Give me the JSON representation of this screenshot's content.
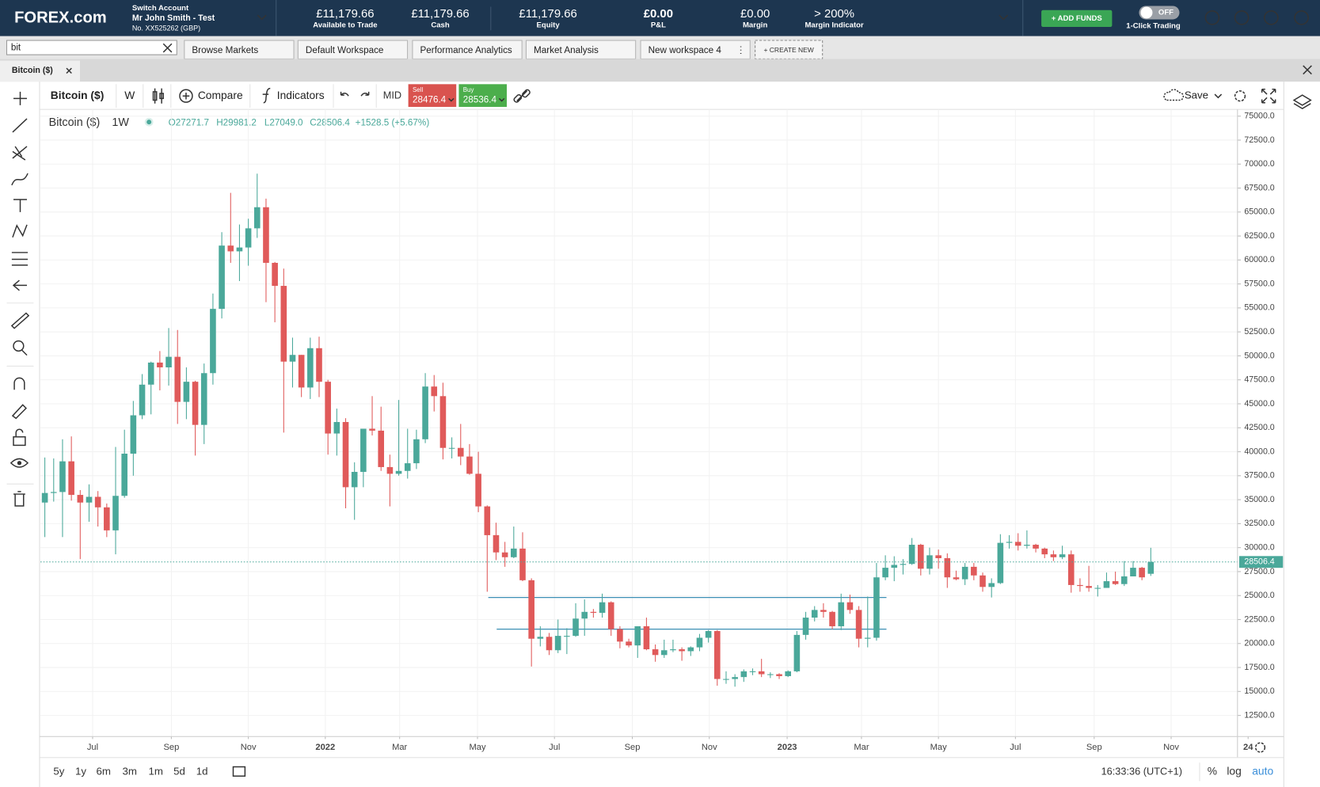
{
  "header": {
    "logo": "FOREX.com",
    "account_switch": "Switch Account",
    "account_name": "Mr John Smith - Test",
    "account_number": "No. XX525262 (GBP)",
    "metrics": [
      {
        "value": "£11,179.66",
        "label": "Available to Trade"
      },
      {
        "value": "£11,179.66",
        "label": "Cash"
      },
      {
        "value": "£11,179.66",
        "label": "Equity"
      },
      {
        "value": "£0.00",
        "label": "P&L"
      },
      {
        "value": "£0.00",
        "label": "Margin"
      },
      {
        "value": "> 200%",
        "label": "Margin Indicator"
      }
    ],
    "add_funds": "+ ADD FUNDS",
    "toggle_state": "OFF",
    "toggle_label": "1-Click Trading"
  },
  "workspace_bar": {
    "search": "bit",
    "tabs": [
      "Browse Markets",
      "Default Workspace",
      "Performance Analytics",
      "Market Analysis",
      "New workspace 4"
    ],
    "create_new": "+ CREATE NEW"
  },
  "document_tab": "Bitcoin ($)",
  "toolbar": {
    "instrument": "Bitcoin ($)",
    "interval": "W",
    "compare": "Compare",
    "indicators": "Indicators",
    "price_type": "MID",
    "sell_label": "Sell",
    "sell_price": "28476.4",
    "buy_label": "Buy",
    "buy_price": "28536.4",
    "save": "Save"
  },
  "legend": {
    "instrument": "Bitcoin ($)",
    "interval": "1W",
    "open": "O27271.7",
    "high": "H29981.2",
    "low": "L27049.0",
    "close": "C28506.4",
    "change": "+1528.5 (+5.67%)"
  },
  "chart_data": {
    "type": "candlestick",
    "up_color": "#4aa89a",
    "down_color": "#e05a5a",
    "line_color": "#3d8fb5",
    "ohlc": [
      [
        34700,
        39400,
        31100,
        35700
      ],
      [
        35700,
        39300,
        34800,
        35800
      ],
      [
        35800,
        41300,
        31100,
        39000
      ],
      [
        39000,
        41600,
        34900,
        35500
      ],
      [
        35500,
        36000,
        28800,
        34700
      ],
      [
        34700,
        36600,
        32700,
        35300
      ],
      [
        35300,
        35900,
        32200,
        34200
      ],
      [
        34200,
        34600,
        31100,
        31800
      ],
      [
        31800,
        40500,
        29300,
        35400
      ],
      [
        35400,
        42300,
        35200,
        39800
      ],
      [
        39800,
        45300,
        37500,
        43800
      ],
      [
        43800,
        48100,
        43400,
        47000
      ],
      [
        47000,
        49400,
        43900,
        49300
      ],
      [
        49300,
        50500,
        46400,
        48800
      ],
      [
        48800,
        52900,
        46900,
        49900
      ],
      [
        49900,
        52700,
        42900,
        45200
      ],
      [
        45200,
        48800,
        43400,
        47300
      ],
      [
        47300,
        47400,
        39600,
        42800
      ],
      [
        42800,
        49200,
        40800,
        48200
      ],
      [
        48200,
        56500,
        47000,
        54900
      ],
      [
        54900,
        62900,
        53900,
        61500
      ],
      [
        61500,
        67000,
        59700,
        60900
      ],
      [
        60900,
        63700,
        57800,
        61300
      ],
      [
        61300,
        64300,
        59400,
        63300
      ],
      [
        63300,
        69000,
        62300,
        65500
      ],
      [
        65500,
        66400,
        55600,
        59700
      ],
      [
        59700,
        59800,
        53500,
        57300
      ],
      [
        57300,
        59100,
        42000,
        49400
      ],
      [
        49400,
        51900,
        46700,
        50100
      ],
      [
        50100,
        50100,
        45700,
        46700
      ],
      [
        46700,
        51900,
        45500,
        50800
      ],
      [
        50800,
        52000,
        45700,
        47300
      ],
      [
        47300,
        47500,
        39700,
        41900
      ],
      [
        41900,
        44500,
        39600,
        43100
      ],
      [
        43100,
        43500,
        34100,
        36300
      ],
      [
        36300,
        38900,
        32900,
        37900
      ],
      [
        37900,
        42400,
        36300,
        42400
      ],
      [
        42400,
        45800,
        41700,
        42200
      ],
      [
        42200,
        44700,
        38000,
        38400
      ],
      [
        38400,
        39700,
        34300,
        37700
      ],
      [
        37700,
        45400,
        37500,
        38000
      ],
      [
        38000,
        42400,
        37200,
        38800
      ],
      [
        38800,
        42300,
        38200,
        41300
      ],
      [
        41300,
        48200,
        40900,
        46800
      ],
      [
        46800,
        48000,
        44200,
        45800
      ],
      [
        45800,
        47200,
        39200,
        40400
      ],
      [
        40400,
        41500,
        39300,
        40400
      ],
      [
        40400,
        42900,
        38600,
        39500
      ],
      [
        39500,
        40800,
        37600,
        37700
      ],
      [
        37700,
        40000,
        33700,
        34300
      ],
      [
        34300,
        34400,
        25400,
        31300
      ],
      [
        31300,
        32600,
        28700,
        29500
      ],
      [
        29500,
        30600,
        28000,
        29000
      ],
      [
        29000,
        32200,
        28900,
        29900
      ],
      [
        29900,
        31600,
        26500,
        26600
      ],
      [
        26600,
        26800,
        17600,
        20500
      ],
      [
        20500,
        21800,
        19700,
        20700
      ],
      [
        20700,
        21100,
        18800,
        19300
      ],
      [
        19300,
        22500,
        19000,
        20800
      ],
      [
        20800,
        21600,
        18900,
        20800
      ],
      [
        20800,
        24200,
        20700,
        22600
      ],
      [
        22600,
        24600,
        20800,
        23300
      ],
      [
        23300,
        23600,
        22700,
        23200
      ],
      [
        23200,
        25200,
        22700,
        24300
      ],
      [
        24300,
        24400,
        20800,
        21500
      ],
      [
        21500,
        21800,
        19500,
        20200
      ],
      [
        20200,
        20500,
        19600,
        19800
      ],
      [
        19800,
        21800,
        18500,
        21800
      ],
      [
        21800,
        22700,
        19300,
        19400
      ],
      [
        19400,
        19900,
        18100,
        18800
      ],
      [
        18800,
        20400,
        18500,
        19300
      ],
      [
        19300,
        20400,
        19100,
        19400
      ],
      [
        19400,
        19600,
        18200,
        19200
      ],
      [
        19200,
        19700,
        18700,
        19600
      ],
      [
        19600,
        21000,
        19200,
        20600
      ],
      [
        20600,
        21400,
        20100,
        21300
      ],
      [
        21300,
        21400,
        15600,
        16300
      ],
      [
        16300,
        17100,
        15800,
        16300
      ],
      [
        16300,
        16800,
        15500,
        16500
      ],
      [
        16500,
        17300,
        16000,
        17100
      ],
      [
        17100,
        17400,
        16700,
        17100
      ],
      [
        17100,
        18400,
        16500,
        16800
      ],
      [
        16800,
        17000,
        16400,
        16800
      ],
      [
        16800,
        16900,
        16300,
        16600
      ],
      [
        16600,
        17200,
        16500,
        17100
      ],
      [
        17100,
        21300,
        17000,
        20900
      ],
      [
        20900,
        23300,
        20400,
        22700
      ],
      [
        22700,
        23900,
        22300,
        23500
      ],
      [
        23500,
        24200,
        22700,
        23300
      ],
      [
        23300,
        23400,
        21500,
        21800
      ],
      [
        21800,
        25200,
        21400,
        24300
      ],
      [
        24300,
        25100,
        23100,
        23500
      ],
      [
        23500,
        23900,
        19600,
        20500
      ],
      [
        20500,
        24900,
        19600,
        20600
      ],
      [
        20600,
        28400,
        20300,
        26900
      ],
      [
        26900,
        29200,
        26600,
        27900
      ],
      [
        27900,
        29100,
        26500,
        28200
      ],
      [
        28200,
        28800,
        27200,
        28300
      ],
      [
        28300,
        31000,
        28200,
        30300
      ],
      [
        30300,
        30400,
        27100,
        27800
      ],
      [
        27800,
        30000,
        27200,
        29200
      ],
      [
        29200,
        29800,
        27800,
        28900
      ],
      [
        28900,
        29400,
        25800,
        26900
      ],
      [
        26900,
        27600,
        26600,
        26700
      ],
      [
        26700,
        28400,
        26100,
        28000
      ],
      [
        28000,
        28400,
        26600,
        27100
      ],
      [
        27100,
        27400,
        25400,
        25900
      ],
      [
        25900,
        26800,
        24800,
        26300
      ],
      [
        26300,
        31400,
        26200,
        30500
      ],
      [
        30500,
        31300,
        29900,
        30600
      ],
      [
        30600,
        31500,
        29700,
        30200
      ],
      [
        30200,
        31800,
        29900,
        30300
      ],
      [
        30300,
        30400,
        29500,
        29900
      ],
      [
        29900,
        30000,
        28900,
        29300
      ],
      [
        29300,
        29700,
        28600,
        29000
      ],
      [
        29000,
        30200,
        28800,
        29300
      ],
      [
        29300,
        29700,
        25300,
        26100
      ],
      [
        26100,
        26800,
        25400,
        26000
      ],
      [
        26000,
        28100,
        25400,
        25800
      ],
      [
        25800,
        26100,
        24900,
        25800
      ],
      [
        25800,
        27400,
        25800,
        26500
      ],
      [
        26500,
        27500,
        26100,
        26200
      ],
      [
        26200,
        28600,
        26000,
        27000
      ],
      [
        27000,
        28600,
        27000,
        27900
      ],
      [
        27900,
        28000,
        26600,
        26900
      ],
      [
        27271.7,
        29981.2,
        27049.0,
        28506.4
      ]
    ],
    "xlim": [
      -0.5,
      134.8
    ],
    "xticks": [
      {
        "value": 5.4,
        "label": "Jul"
      },
      {
        "value": 14.3,
        "label": "Sep"
      },
      {
        "value": 23,
        "label": "Nov"
      },
      {
        "value": 31.7,
        "label": "2022"
      },
      {
        "value": 40.1,
        "label": "Mar"
      },
      {
        "value": 48.9,
        "label": "May"
      },
      {
        "value": 57.6,
        "label": "Jul"
      },
      {
        "value": 66.4,
        "label": "Sep"
      },
      {
        "value": 75.1,
        "label": "Nov"
      },
      {
        "value": 83.9,
        "label": "2023"
      },
      {
        "value": 92.3,
        "label": "Mar"
      },
      {
        "value": 101,
        "label": "May"
      },
      {
        "value": 109.7,
        "label": "Jul"
      },
      {
        "value": 118.6,
        "label": "Sep"
      },
      {
        "value": 127.3,
        "label": "Nov"
      },
      {
        "value": 136,
        "label": "24"
      }
    ],
    "ylim": [
      10300,
      75700
    ],
    "yticks": [
      {
        "value": 75000,
        "label": "75000.0"
      },
      {
        "value": 72500,
        "label": "72500.0"
      },
      {
        "value": 70000,
        "label": "70000.0"
      },
      {
        "value": 67500,
        "label": "67500.0"
      },
      {
        "value": 65000,
        "label": "65000.0"
      },
      {
        "value": 62500,
        "label": "62500.0"
      },
      {
        "value": 60000,
        "label": "60000.0"
      },
      {
        "value": 57500,
        "label": "57500.0"
      },
      {
        "value": 55000,
        "label": "55000.0"
      },
      {
        "value": 52500,
        "label": "52500.0"
      },
      {
        "value": 50000,
        "label": "50000.0"
      },
      {
        "value": 47500,
        "label": "47500.0"
      },
      {
        "value": 45000,
        "label": "45000.0"
      },
      {
        "value": 42500,
        "label": "42500.0"
      },
      {
        "value": 40000,
        "label": "40000.0"
      },
      {
        "value": 37500,
        "label": "37500.0"
      },
      {
        "value": 35000,
        "label": "35000.0"
      },
      {
        "value": 32500,
        "label": "32500.0"
      },
      {
        "value": 30000,
        "label": "30000.0"
      },
      {
        "value": 27500,
        "label": "27500.0"
      },
      {
        "value": 25000,
        "label": "25000.0"
      },
      {
        "value": 22500,
        "label": "22500.0"
      },
      {
        "value": 20000,
        "label": "20000.0"
      },
      {
        "value": 17500,
        "label": "17500.0"
      },
      {
        "value": 15000,
        "label": "15000.0"
      },
      {
        "value": 12500,
        "label": "12500.0"
      }
    ],
    "grid": true,
    "horizontal_lines": [
      24800,
      21500
    ]
  },
  "footer": {
    "ranges": [
      "5y",
      "1y",
      "6m",
      "3m",
      "1m",
      "5d",
      "1d"
    ],
    "time": "16:33:36 (UTC+1)",
    "percent": "%",
    "log": "log",
    "auto": "auto"
  }
}
